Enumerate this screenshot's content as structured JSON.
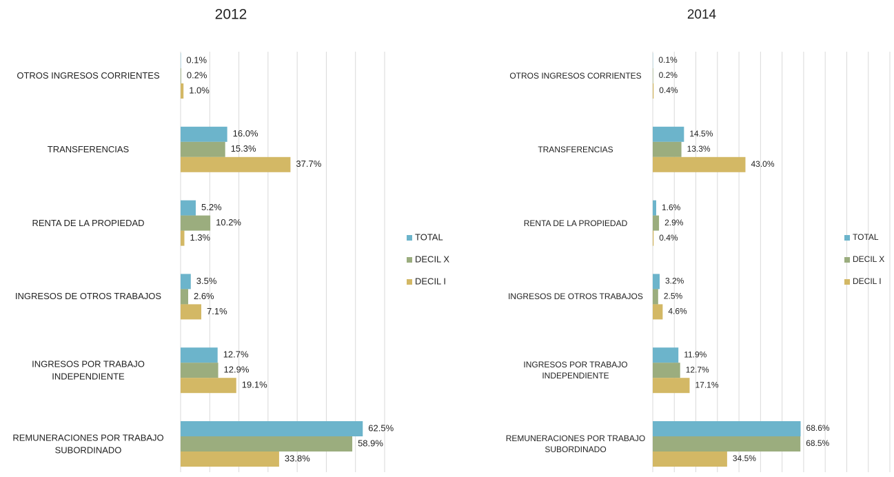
{
  "chart_data": [
    {
      "type": "barh",
      "title": "2012",
      "categories": [
        "OTROS INGRESOS CORRIENTES",
        "TRANSFERENCIAS",
        "RENTA DE LA PROPIEDAD",
        "INGRESOS DE OTROS TRABAJOS",
        "INGRESOS POR TRABAJO INDEPENDIENTE",
        "REMUNERACIONES POR TRABAJO SUBORDINADO"
      ],
      "series": [
        {
          "name": "TOTAL",
          "color": "#6cb4cb",
          "values": [
            0.1,
            16.0,
            5.2,
            3.5,
            12.7,
            62.5
          ],
          "value_labels": [
            "0.1%",
            "16.0%",
            "5.2%",
            "3.5%",
            "12.7%",
            "62.5%"
          ]
        },
        {
          "name": "DECIL X",
          "color": "#9bad7e",
          "values": [
            0.2,
            15.3,
            10.2,
            2.6,
            12.9,
            58.9
          ],
          "value_labels": [
            "0.2%",
            "15.3%",
            "10.2%",
            "2.6%",
            "12.9%",
            "58.9%"
          ]
        },
        {
          "name": "DECIL I",
          "color": "#d3b865",
          "values": [
            1.0,
            37.7,
            1.3,
            7.1,
            19.1,
            33.8
          ],
          "value_labels": [
            "1.0%",
            "37.7%",
            "1.3%",
            "7.1%",
            "19.1%",
            "33.8%"
          ]
        }
      ],
      "xlim": [
        0,
        70
      ],
      "xticks": [
        0,
        10,
        20,
        30,
        40,
        50,
        60,
        70
      ],
      "grid": true,
      "legend": "right"
    },
    {
      "type": "barh",
      "title": "2014",
      "categories": [
        "OTROS INGRESOS CORRIENTES",
        "TRANSFERENCIAS",
        "RENTA DE LA PROPIEDAD",
        "INGRESOS DE OTROS TRABAJOS",
        "INGRESOS POR TRABAJO INDEPENDIENTE",
        "REMUNERACIONES POR TRABAJO SUBORDINADO"
      ],
      "series": [
        {
          "name": "TOTAL",
          "color": "#6cb4cb",
          "values": [
            0.1,
            14.5,
            1.6,
            3.2,
            11.9,
            68.6
          ],
          "value_labels": [
            "0.1%",
            "14.5%",
            "1.6%",
            "3.2%",
            "11.9%",
            "68.6%"
          ]
        },
        {
          "name": "DECIL X",
          "color": "#9bad7e",
          "values": [
            0.2,
            13.3,
            2.9,
            2.5,
            12.7,
            68.5
          ],
          "value_labels": [
            "0.2%",
            "13.3%",
            "2.9%",
            "2.5%",
            "12.7%",
            "68.5%"
          ]
        },
        {
          "name": "DECIL I",
          "color": "#d3b865",
          "values": [
            0.4,
            43.0,
            0.4,
            4.6,
            17.1,
            34.5
          ],
          "value_labels": [
            "0.4%",
            "43.0%",
            "0.4%",
            "4.6%",
            "17.1%",
            "34.5%"
          ]
        }
      ],
      "xlim": [
        0,
        110
      ],
      "xticks": [
        0,
        10,
        20,
        30,
        40,
        50,
        60,
        70,
        80,
        90,
        100,
        110
      ],
      "grid": true,
      "legend": "right"
    }
  ]
}
